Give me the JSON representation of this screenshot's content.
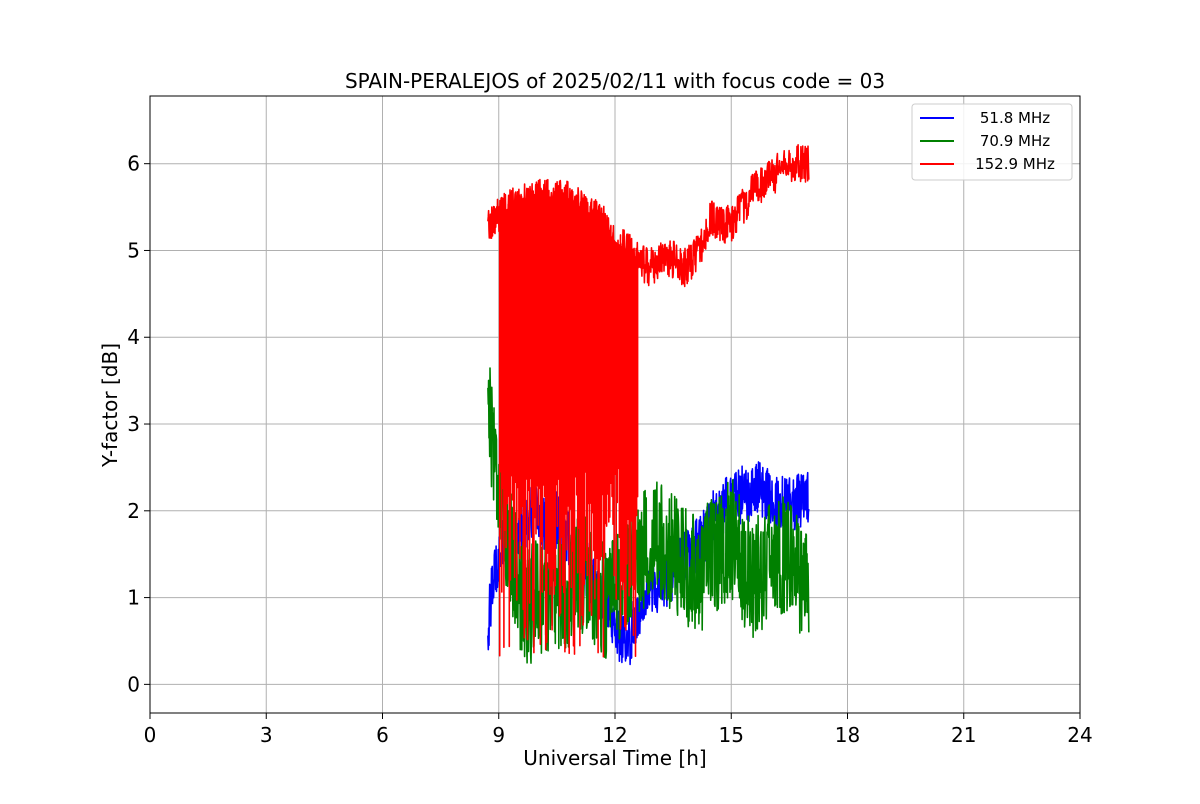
{
  "chart_data": {
    "type": "line",
    "title": "SPAIN-PERALEJOS of 2025/02/11 with focus code = 03",
    "xlabel": "Universal Time [h]",
    "ylabel": "Y-factor [dB]",
    "xlim": [
      0,
      24
    ],
    "ylim": [
      -0.33,
      6.78
    ],
    "xticks": [
      0,
      3,
      6,
      9,
      12,
      15,
      18,
      21,
      24
    ],
    "xtick_labels": [
      "0",
      "3",
      "6",
      "9",
      "12",
      "15",
      "18",
      "21",
      "24"
    ],
    "yticks": [
      0,
      1,
      2,
      3,
      4,
      5,
      6
    ],
    "ytick_labels": [
      "0",
      "1",
      "2",
      "3",
      "4",
      "5",
      "6"
    ],
    "grid": true,
    "legend_position": "top-right",
    "series": [
      {
        "name": "51.8 MHz",
        "color": "#0000ff",
        "anchors": [
          [
            8.72,
            0.6
          ],
          [
            8.8,
            1.0
          ],
          [
            8.9,
            1.3
          ],
          [
            9.0,
            1.5
          ],
          [
            9.15,
            1.6
          ],
          [
            9.3,
            1.7
          ],
          [
            9.5,
            1.8
          ],
          [
            9.7,
            1.9
          ],
          [
            9.9,
            2.0
          ],
          [
            10.1,
            1.9
          ],
          [
            10.3,
            1.8
          ],
          [
            10.5,
            1.9
          ],
          [
            10.7,
            1.7
          ],
          [
            10.9,
            1.6
          ],
          [
            11.1,
            1.4
          ],
          [
            11.3,
            1.3
          ],
          [
            11.5,
            1.2
          ],
          [
            11.7,
            1.0
          ],
          [
            11.9,
            0.8
          ],
          [
            12.1,
            0.6
          ],
          [
            12.3,
            0.4
          ],
          [
            12.5,
            0.7
          ],
          [
            12.7,
            1.0
          ],
          [
            12.9,
            1.2
          ],
          [
            13.1,
            1.1
          ],
          [
            13.3,
            1.2
          ],
          [
            13.5,
            1.3
          ],
          [
            13.7,
            1.4
          ],
          [
            13.9,
            1.5
          ],
          [
            14.1,
            1.6
          ],
          [
            14.3,
            1.7
          ],
          [
            14.5,
            1.9
          ],
          [
            14.7,
            2.0
          ],
          [
            14.9,
            2.1
          ],
          [
            15.1,
            2.1
          ],
          [
            15.3,
            2.2
          ],
          [
            15.5,
            2.2
          ],
          [
            15.7,
            2.3
          ],
          [
            15.9,
            2.2
          ],
          [
            16.1,
            2.1
          ],
          [
            16.3,
            2.1
          ],
          [
            16.5,
            2.1
          ],
          [
            16.7,
            2.1
          ],
          [
            16.9,
            2.2
          ],
          [
            17.0,
            2.2
          ]
        ],
        "noise": 0.33
      },
      {
        "name": "70.9 MHz",
        "color": "#008000",
        "anchors": [
          [
            8.72,
            3.4
          ],
          [
            8.8,
            3.0
          ],
          [
            8.9,
            2.7
          ],
          [
            9.0,
            2.3
          ],
          [
            9.2,
            1.8
          ],
          [
            9.4,
            1.4
          ],
          [
            9.6,
            1.0
          ],
          [
            9.8,
            0.9
          ],
          [
            10.0,
            1.1
          ],
          [
            10.2,
            1.0
          ],
          [
            10.4,
            1.2
          ],
          [
            10.6,
            1.0
          ],
          [
            10.8,
            1.1
          ],
          [
            11.0,
            1.2
          ],
          [
            11.2,
            1.3
          ],
          [
            11.4,
            1.2
          ],
          [
            11.6,
            1.0
          ],
          [
            11.8,
            0.9
          ],
          [
            12.0,
            1.0
          ],
          [
            12.2,
            1.2
          ],
          [
            12.4,
            1.4
          ],
          [
            12.6,
            1.5
          ],
          [
            12.8,
            1.6
          ],
          [
            13.0,
            1.7
          ],
          [
            13.2,
            1.6
          ],
          [
            13.4,
            1.5
          ],
          [
            13.6,
            1.5
          ],
          [
            13.8,
            1.4
          ],
          [
            14.0,
            1.3
          ],
          [
            14.2,
            1.3
          ],
          [
            14.4,
            1.4
          ],
          [
            14.6,
            1.5
          ],
          [
            14.8,
            1.6
          ],
          [
            15.0,
            1.7
          ],
          [
            15.2,
            1.5
          ],
          [
            15.4,
            1.3
          ],
          [
            15.6,
            1.2
          ],
          [
            15.8,
            1.3
          ],
          [
            16.0,
            1.4
          ],
          [
            16.2,
            1.4
          ],
          [
            16.4,
            1.5
          ],
          [
            16.6,
            1.4
          ],
          [
            16.8,
            1.2
          ],
          [
            17.0,
            1.0
          ]
        ],
        "noise": 0.7
      },
      {
        "name": "152.9 MHz",
        "color": "#ff0000",
        "anchors": [
          [
            8.72,
            5.3
          ],
          [
            9.0,
            5.4
          ],
          [
            9.3,
            5.5
          ],
          [
            9.6,
            5.55
          ],
          [
            9.9,
            5.6
          ],
          [
            10.2,
            5.6
          ],
          [
            10.5,
            5.6
          ],
          [
            10.8,
            5.6
          ],
          [
            11.1,
            5.5
          ],
          [
            11.4,
            5.4
          ],
          [
            11.7,
            5.3
          ],
          [
            12.0,
            5.1
          ],
          [
            12.3,
            5.0
          ],
          [
            12.6,
            4.9
          ],
          [
            12.9,
            4.8
          ],
          [
            13.2,
            4.9
          ],
          [
            13.5,
            4.9
          ],
          [
            13.8,
            4.8
          ],
          [
            14.0,
            4.9
          ],
          [
            14.3,
            5.1
          ],
          [
            14.5,
            5.4
          ],
          [
            14.7,
            5.3
          ],
          [
            15.0,
            5.3
          ],
          [
            15.3,
            5.5
          ],
          [
            15.6,
            5.7
          ],
          [
            15.9,
            5.8
          ],
          [
            16.2,
            5.9
          ],
          [
            16.5,
            6.0
          ],
          [
            16.8,
            6.0
          ],
          [
            17.0,
            6.0
          ]
        ],
        "noise": 0.22,
        "dropouts": {
          "from": 9.0,
          "to": 12.6,
          "min": 0.3,
          "max": 2.5,
          "every": 3
        }
      }
    ]
  }
}
